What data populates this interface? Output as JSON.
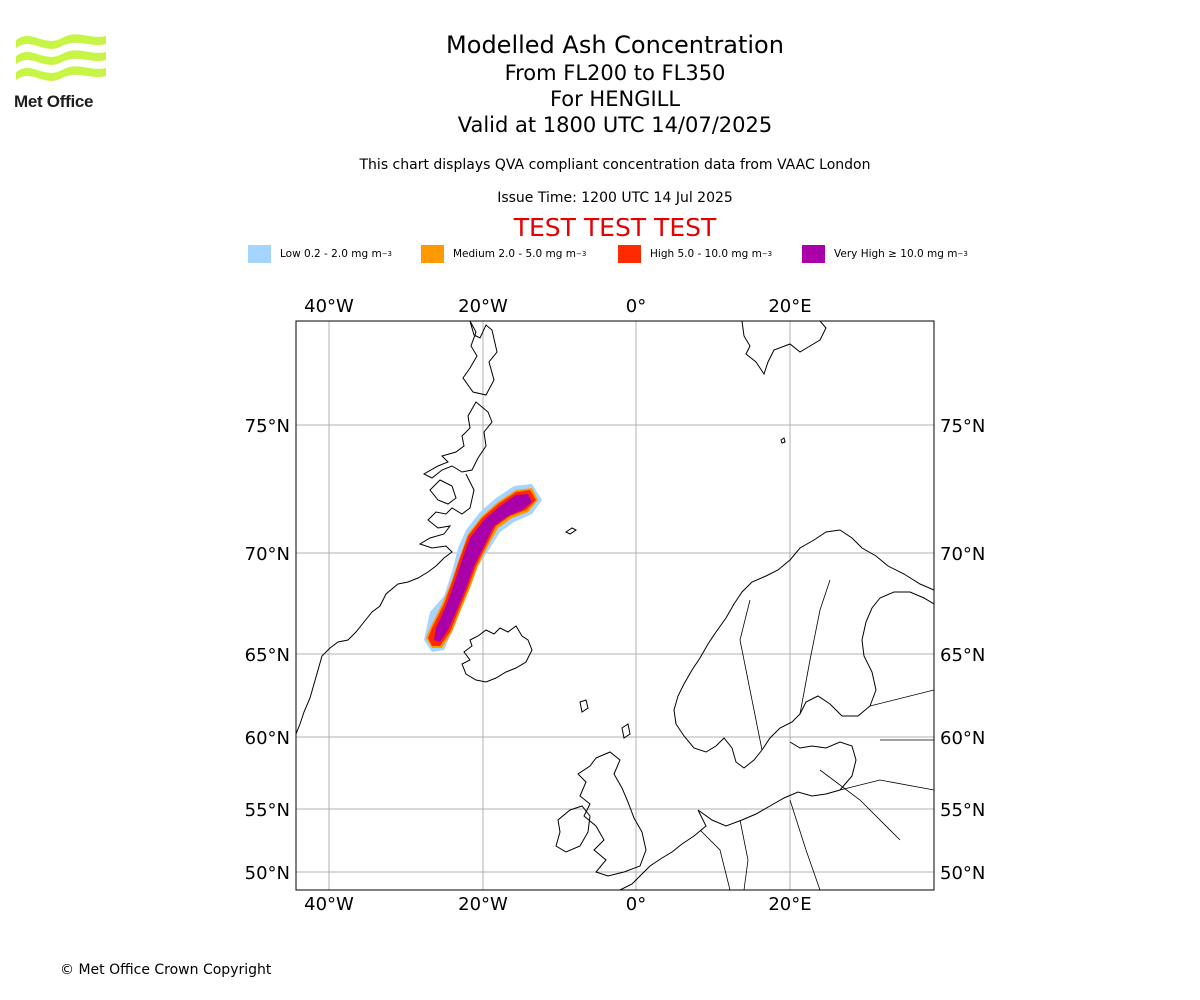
{
  "logo": {
    "text": "Met Office",
    "color": "#c8f545"
  },
  "title": {
    "line1": "Modelled Ash Concentration",
    "line2": "From FL200 to FL350",
    "line3": "For HENGILL",
    "line4": "Valid at 1800 UTC 14/07/2025"
  },
  "subtitle": "This chart displays QVA compliant concentration data from VAAC London",
  "issue_time": "Issue Time: 1200 UTC 14 Jul 2025",
  "test_banner": "TEST TEST TEST",
  "legend": [
    {
      "label": "Low 0.2 - 2.0 mg m",
      "color": "#a5d5ff"
    },
    {
      "label": "Medium 2.0 - 5.0 mg m",
      "color": "#ff9900"
    },
    {
      "label": "High 5.0 - 10.0 mg m",
      "color": "#ff2a00"
    },
    {
      "label": "Very High  ≥  10.0 mg m",
      "color": "#aa00aa"
    }
  ],
  "legend_unit_exponent": "−3",
  "map": {
    "lon_labels": [
      "40°W",
      "20°W",
      "0°",
      "20°E"
    ],
    "lat_labels": [
      "75°N",
      "70°N",
      "65°N",
      "60°N",
      "55°N",
      "50°N"
    ],
    "lon_values": [
      -40,
      -20,
      0,
      20
    ],
    "lat_values": [
      75,
      70,
      65,
      60,
      55,
      50
    ],
    "coastline_color": "#000000",
    "grid_color": "#b0b0b0"
  },
  "copyright": "© Met Office Crown Copyright"
}
